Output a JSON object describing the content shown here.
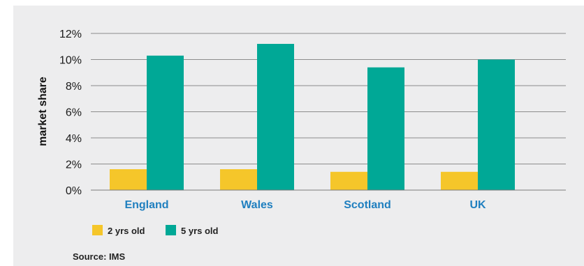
{
  "chart_data": {
    "type": "bar",
    "title": "",
    "ylabel": "market share",
    "xlabel": "",
    "categories": [
      "England",
      "Wales",
      "Scotland",
      "UK"
    ],
    "series": [
      {
        "name": "2 yrs old",
        "values": [
          1.6,
          1.6,
          1.4,
          1.4
        ],
        "color": "#f5c62a"
      },
      {
        "name": "5 yrs old",
        "values": [
          10.3,
          11.2,
          9.4,
          10.0
        ],
        "color": "#00a896"
      }
    ],
    "ylim": [
      0,
      12
    ],
    "yticks": [
      "0%",
      "2%",
      "4%",
      "6%",
      "8%",
      "10%",
      "12%"
    ],
    "grid": true,
    "legend": "bottom-left"
  },
  "source": "Source: IMS"
}
